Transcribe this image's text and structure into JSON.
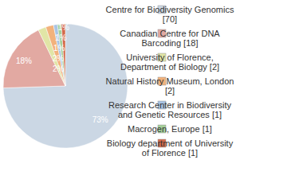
{
  "chart_data": {
    "type": "pie",
    "categories": [
      "Centre for Biodiversity Genomics [70]",
      "Canadian Centre for DNA Barcoding [18]",
      "University of Florence, Department of Biology [2]",
      "Natural History Museum, London [2]",
      "Research Center in Biodiversity and Genetic Resources [1]",
      "Macrogen, Europe [1]",
      "Biology department of University of Florence [1]"
    ],
    "values": [
      73,
      18,
      2,
      2,
      1,
      1,
      1
    ],
    "value_labels": [
      "73%",
      "18%",
      "2%",
      "2%",
      "1%",
      "1%",
      "1%"
    ],
    "colors": [
      "#cbd7e4",
      "#e2a9a2",
      "#e1e5a6",
      "#f2b27c",
      "#a9c4e4",
      "#a5d09a",
      "#d4694a"
    ],
    "data_labels": true,
    "legend": "right"
  }
}
